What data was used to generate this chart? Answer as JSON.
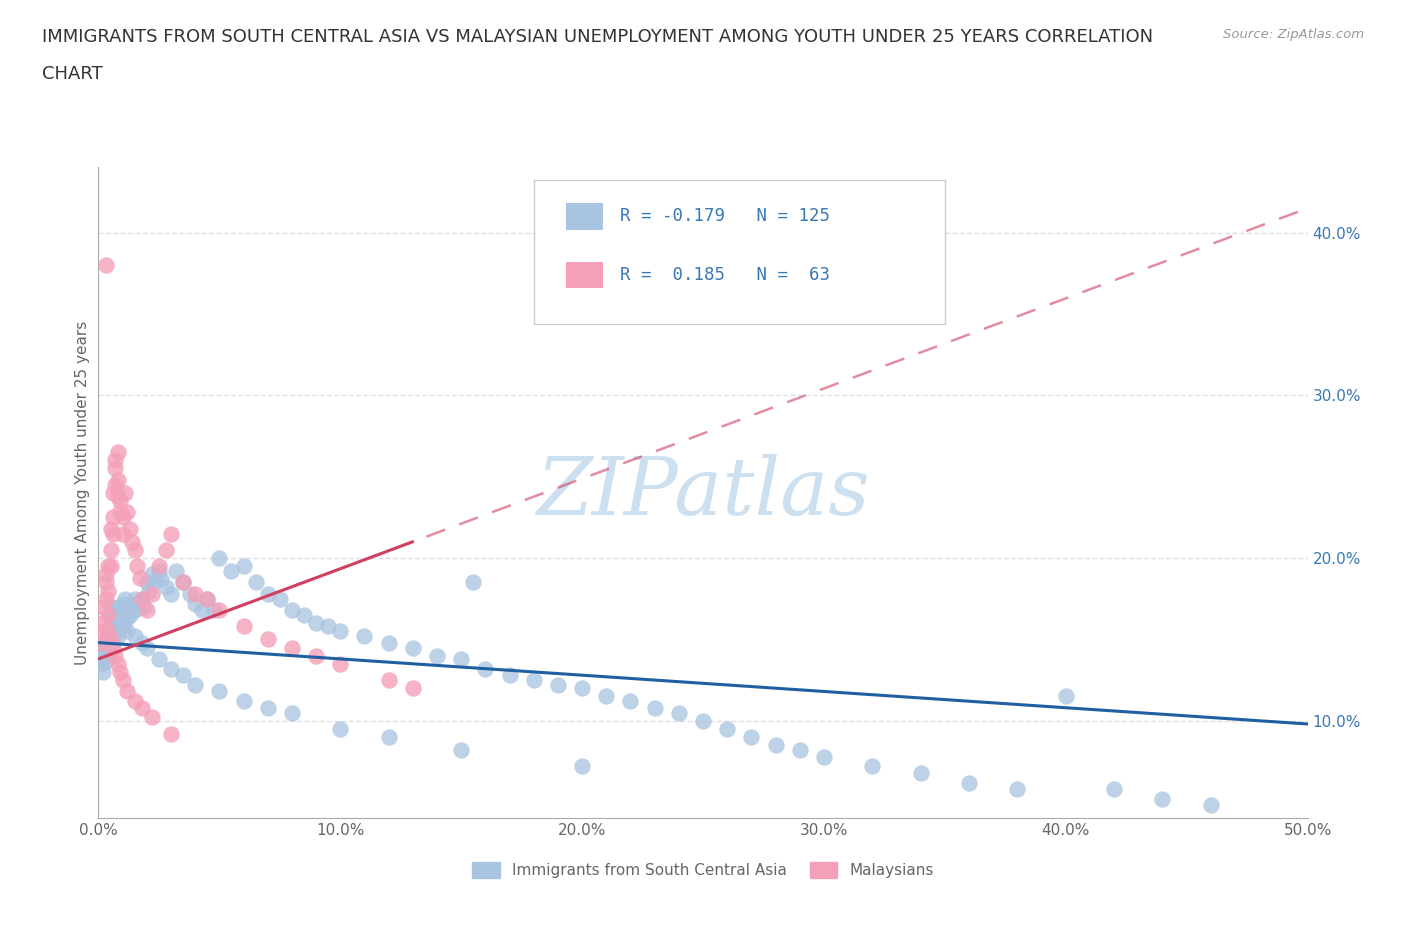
{
  "title_line1": "IMMIGRANTS FROM SOUTH CENTRAL ASIA VS MALAYSIAN UNEMPLOYMENT AMONG YOUTH UNDER 25 YEARS CORRELATION",
  "title_line2": "CHART",
  "source_text": "Source: ZipAtlas.com",
  "ylabel": "Unemployment Among Youth under 25 years",
  "xlim": [
    0.0,
    0.5
  ],
  "ylim": [
    0.04,
    0.44
  ],
  "yticks": [
    0.1,
    0.2,
    0.3,
    0.4
  ],
  "ytick_labels": [
    "10.0%",
    "20.0%",
    "30.0%",
    "40.0%"
  ],
  "xticks": [
    0.0,
    0.1,
    0.2,
    0.3,
    0.4,
    0.5
  ],
  "xtick_labels": [
    "0.0%",
    "10.0%",
    "20.0%",
    "30.0%",
    "40.0%",
    "50.0%"
  ],
  "blue_color": "#a8c4e0",
  "pink_color": "#f4a0b8",
  "blue_line_color": "#2060a0",
  "pink_line_color": "#d04060",
  "R_blue": -0.179,
  "N_blue": 125,
  "R_pink": 0.185,
  "N_pink": 63,
  "legend_text_color": "#3a78b5",
  "watermark_color": "#cce0f0",
  "background_color": "#ffffff",
  "grid_color": "#d8d8d8",
  "title_fontsize": 13,
  "axis_label_fontsize": 11,
  "tick_fontsize": 11,
  "legend_label_blue": "Immigrants from South Central Asia",
  "legend_label_pink": "Malaysians",
  "blue_scatter_x": [
    0.001,
    0.001,
    0.002,
    0.002,
    0.002,
    0.003,
    0.003,
    0.003,
    0.003,
    0.004,
    0.004,
    0.004,
    0.004,
    0.005,
    0.005,
    0.005,
    0.005,
    0.005,
    0.006,
    0.006,
    0.006,
    0.006,
    0.006,
    0.007,
    0.007,
    0.007,
    0.007,
    0.008,
    0.008,
    0.008,
    0.008,
    0.009,
    0.009,
    0.009,
    0.01,
    0.01,
    0.01,
    0.011,
    0.011,
    0.012,
    0.012,
    0.013,
    0.013,
    0.014,
    0.015,
    0.015,
    0.016,
    0.017,
    0.018,
    0.019,
    0.02,
    0.021,
    0.022,
    0.023,
    0.025,
    0.026,
    0.028,
    0.03,
    0.032,
    0.035,
    0.038,
    0.04,
    0.043,
    0.045,
    0.048,
    0.05,
    0.055,
    0.06,
    0.065,
    0.07,
    0.075,
    0.08,
    0.085,
    0.09,
    0.095,
    0.1,
    0.11,
    0.12,
    0.13,
    0.14,
    0.15,
    0.155,
    0.16,
    0.17,
    0.18,
    0.19,
    0.2,
    0.21,
    0.22,
    0.23,
    0.24,
    0.25,
    0.26,
    0.27,
    0.28,
    0.29,
    0.3,
    0.32,
    0.34,
    0.36,
    0.38,
    0.4,
    0.42,
    0.44,
    0.46,
    0.005,
    0.007,
    0.009,
    0.01,
    0.012,
    0.015,
    0.018,
    0.02,
    0.025,
    0.03,
    0.035,
    0.04,
    0.05,
    0.06,
    0.07,
    0.08,
    0.1,
    0.12,
    0.15,
    0.2
  ],
  "blue_scatter_y": [
    0.14,
    0.135,
    0.145,
    0.13,
    0.138,
    0.15,
    0.143,
    0.148,
    0.137,
    0.152,
    0.145,
    0.141,
    0.156,
    0.155,
    0.148,
    0.162,
    0.158,
    0.143,
    0.163,
    0.157,
    0.155,
    0.165,
    0.149,
    0.16,
    0.155,
    0.167,
    0.153,
    0.163,
    0.157,
    0.17,
    0.152,
    0.168,
    0.162,
    0.158,
    0.172,
    0.165,
    0.16,
    0.175,
    0.168,
    0.17,
    0.163,
    0.172,
    0.165,
    0.168,
    0.175,
    0.168,
    0.172,
    0.17,
    0.175,
    0.17,
    0.185,
    0.18,
    0.19,
    0.185,
    0.192,
    0.187,
    0.182,
    0.178,
    0.192,
    0.185,
    0.178,
    0.172,
    0.168,
    0.175,
    0.168,
    0.2,
    0.192,
    0.195,
    0.185,
    0.178,
    0.175,
    0.168,
    0.165,
    0.16,
    0.158,
    0.155,
    0.152,
    0.148,
    0.145,
    0.14,
    0.138,
    0.185,
    0.132,
    0.128,
    0.125,
    0.122,
    0.12,
    0.115,
    0.112,
    0.108,
    0.105,
    0.1,
    0.095,
    0.09,
    0.085,
    0.082,
    0.078,
    0.072,
    0.068,
    0.062,
    0.058,
    0.115,
    0.058,
    0.052,
    0.048,
    0.17,
    0.165,
    0.162,
    0.158,
    0.155,
    0.152,
    0.148,
    0.145,
    0.138,
    0.132,
    0.128,
    0.122,
    0.118,
    0.112,
    0.108,
    0.105,
    0.095,
    0.09,
    0.082,
    0.072
  ],
  "pink_scatter_x": [
    0.001,
    0.001,
    0.002,
    0.002,
    0.003,
    0.003,
    0.003,
    0.004,
    0.004,
    0.004,
    0.005,
    0.005,
    0.005,
    0.006,
    0.006,
    0.006,
    0.007,
    0.007,
    0.007,
    0.008,
    0.008,
    0.008,
    0.009,
    0.009,
    0.01,
    0.01,
    0.011,
    0.012,
    0.013,
    0.014,
    0.015,
    0.016,
    0.017,
    0.018,
    0.02,
    0.022,
    0.025,
    0.028,
    0.03,
    0.035,
    0.04,
    0.045,
    0.05,
    0.06,
    0.07,
    0.08,
    0.09,
    0.1,
    0.12,
    0.13,
    0.003,
    0.004,
    0.005,
    0.006,
    0.007,
    0.008,
    0.009,
    0.01,
    0.012,
    0.015,
    0.018,
    0.022,
    0.03
  ],
  "pink_scatter_y": [
    0.155,
    0.148,
    0.17,
    0.16,
    0.19,
    0.175,
    0.185,
    0.195,
    0.18,
    0.165,
    0.205,
    0.195,
    0.218,
    0.225,
    0.215,
    0.24,
    0.255,
    0.245,
    0.26,
    0.248,
    0.238,
    0.265,
    0.235,
    0.228,
    0.215,
    0.225,
    0.24,
    0.228,
    0.218,
    0.21,
    0.205,
    0.195,
    0.188,
    0.175,
    0.168,
    0.178,
    0.195,
    0.205,
    0.215,
    0.185,
    0.178,
    0.175,
    0.168,
    0.158,
    0.15,
    0.145,
    0.14,
    0.135,
    0.125,
    0.12,
    0.38,
    0.155,
    0.15,
    0.145,
    0.14,
    0.135,
    0.13,
    0.125,
    0.118,
    0.112,
    0.108,
    0.102,
    0.092
  ]
}
